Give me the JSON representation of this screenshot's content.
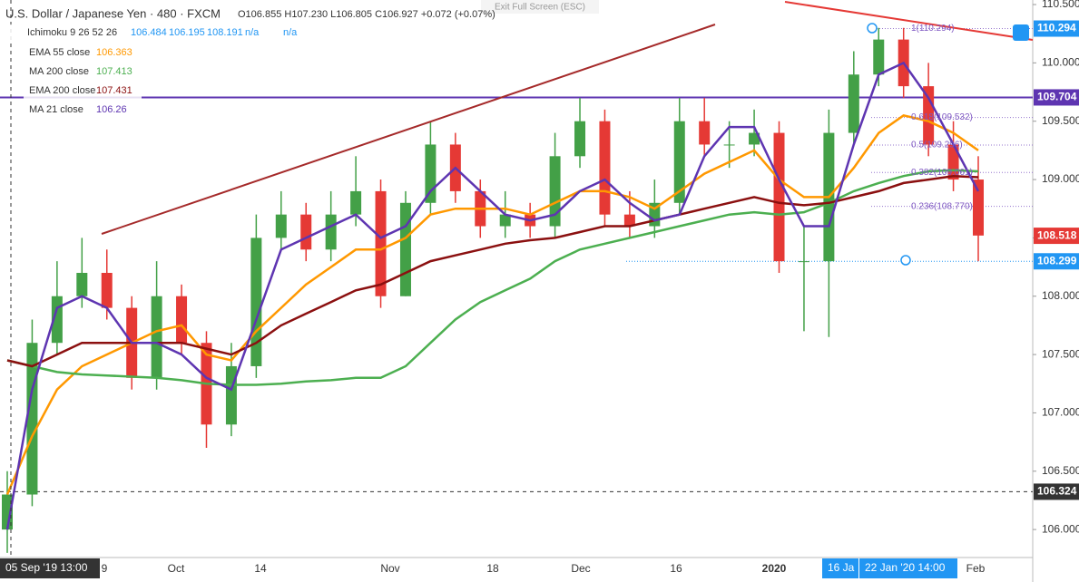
{
  "chart_data": {
    "type": "candlestick",
    "title": "U.S. Dollar / Japanese Yen · 480 · FXCM",
    "ohlc_text": "O106.855 H107.230 L106.805 C106.927 +0.072 (+0.07%)",
    "fullscreen_hint": "Exit Full Screen (ESC)",
    "up_color": "#43a047",
    "down_color": "#e53935",
    "open": [
      106.0,
      106.3,
      107.6,
      108.0,
      108.2,
      107.9,
      107.3,
      108.0,
      107.6,
      106.9,
      107.4,
      108.5,
      108.7,
      108.4,
      108.7,
      108.9,
      108.0,
      108.8,
      109.3,
      108.9,
      108.6,
      108.7,
      108.6,
      109.2,
      109.5,
      108.7,
      108.6,
      108.8,
      109.5,
      109.3,
      109.3,
      109.4,
      108.3,
      108.3,
      109.4,
      109.9,
      110.2,
      109.8,
      109.3,
      109.0
    ],
    "high": [
      106.5,
      107.8,
      108.3,
      108.5,
      108.4,
      108.0,
      108.3,
      108.1,
      107.7,
      107.6,
      108.7,
      108.9,
      108.8,
      108.9,
      109.2,
      109.0,
      108.9,
      109.5,
      109.4,
      109.0,
      108.9,
      108.8,
      109.4,
      109.7,
      109.6,
      108.9,
      109.0,
      109.7,
      109.7,
      109.5,
      109.6,
      109.5,
      108.6,
      109.6,
      110.1,
      110.3,
      110.3,
      110.0,
      109.5,
      109.2
    ],
    "low": [
      105.8,
      106.2,
      107.5,
      107.9,
      107.8,
      107.2,
      107.2,
      107.5,
      106.7,
      106.8,
      107.3,
      108.4,
      108.3,
      108.3,
      108.6,
      107.9,
      108.0,
      108.7,
      108.8,
      108.5,
      108.5,
      108.5,
      108.5,
      109.1,
      108.6,
      108.5,
      108.5,
      108.7,
      109.2,
      109.1,
      109.2,
      108.2,
      107.7,
      107.65,
      109.3,
      109.8,
      109.7,
      109.2,
      108.9,
      108.3
    ],
    "close": [
      106.3,
      107.6,
      108.0,
      108.2,
      107.9,
      107.3,
      108.0,
      107.6,
      106.9,
      107.4,
      108.5,
      108.7,
      108.4,
      108.7,
      108.9,
      108.0,
      108.8,
      109.3,
      108.9,
      108.6,
      108.7,
      108.6,
      109.2,
      109.5,
      108.7,
      108.6,
      108.8,
      109.5,
      109.3,
      109.3,
      109.4,
      108.3,
      108.3,
      109.4,
      109.9,
      110.2,
      109.8,
      109.3,
      109.0,
      108.52
    ],
    "ichimoku": {
      "name": "Ichimoku 9 26 52 26",
      "values": [
        106.484,
        106.195,
        108.191,
        "n/a",
        "n/a"
      ],
      "color": "#2196f3"
    },
    "series": [
      {
        "name": "EMA 55 close",
        "legend_value": 106.363,
        "color": "#ff9800",
        "values": [
          106.3,
          106.8,
          107.2,
          107.4,
          107.5,
          107.6,
          107.7,
          107.75,
          107.5,
          107.45,
          107.7,
          107.9,
          108.1,
          108.25,
          108.4,
          108.4,
          108.5,
          108.7,
          108.75,
          108.75,
          108.75,
          108.7,
          108.8,
          108.9,
          108.9,
          108.85,
          108.75,
          108.9,
          109.05,
          109.15,
          109.25,
          109.0,
          108.85,
          108.85,
          109.1,
          109.4,
          109.55,
          109.5,
          109.4,
          109.25
        ]
      },
      {
        "name": "MA 200 close",
        "legend_value": 107.413,
        "color": "#4caf50",
        "values": [
          107.45,
          107.4,
          107.35,
          107.33,
          107.32,
          107.31,
          107.3,
          107.28,
          107.25,
          107.24,
          107.24,
          107.25,
          107.27,
          107.28,
          107.3,
          107.3,
          107.4,
          107.6,
          107.8,
          107.95,
          108.05,
          108.15,
          108.3,
          108.4,
          108.45,
          108.5,
          108.55,
          108.6,
          108.65,
          108.7,
          108.72,
          108.7,
          108.72,
          108.8,
          108.9,
          108.97,
          109.03,
          109.07,
          109.08,
          109.07
        ]
      },
      {
        "name": "EMA 200 close",
        "legend_value": 107.431,
        "color": "#8b1010",
        "values": [
          107.45,
          107.4,
          107.5,
          107.6,
          107.6,
          107.6,
          107.6,
          107.6,
          107.55,
          107.5,
          107.6,
          107.75,
          107.85,
          107.95,
          108.05,
          108.1,
          108.2,
          108.3,
          108.35,
          108.4,
          108.45,
          108.48,
          108.5,
          108.55,
          108.6,
          108.6,
          108.65,
          108.7,
          108.75,
          108.8,
          108.85,
          108.8,
          108.78,
          108.8,
          108.85,
          108.9,
          108.97,
          109.0,
          109.03,
          109.02
        ]
      },
      {
        "name": "MA 21 close",
        "legend_value": 106.26,
        "color": "#5e35b1",
        "values": [
          106.0,
          107.2,
          107.9,
          108.0,
          107.9,
          107.6,
          107.6,
          107.5,
          107.3,
          107.2,
          107.8,
          108.4,
          108.5,
          108.6,
          108.7,
          108.5,
          108.6,
          108.9,
          109.1,
          108.9,
          108.7,
          108.65,
          108.7,
          108.9,
          109.0,
          108.8,
          108.65,
          108.7,
          109.2,
          109.45,
          109.45,
          109.0,
          108.6,
          108.6,
          109.3,
          109.9,
          110.0,
          109.7,
          109.3,
          108.9
        ]
      }
    ],
    "ylim": [
      105.76,
      110.539
    ],
    "yticks": [
      {
        "value": 110.5,
        "label": "110.500"
      },
      {
        "value": 110,
        "label": "110.000"
      },
      {
        "value": 109.5,
        "label": "109.500"
      },
      {
        "value": 109,
        "label": "109.000"
      },
      {
        "value": 108.5,
        "label": "108.500"
      },
      {
        "value": 108,
        "label": "108.000"
      },
      {
        "value": 107.5,
        "label": "107.500"
      },
      {
        "value": 107,
        "label": "107.000"
      },
      {
        "value": 106.5,
        "label": "106.500"
      },
      {
        "value": 106,
        "label": "106.000"
      }
    ],
    "x_axis_labels": [
      "9",
      "Oct",
      "14",
      "Nov",
      "18",
      "Dec",
      "16",
      "2020",
      "Feb"
    ],
    "x_highlight_labels": [
      "05 Sep '19  13:00",
      "16 Ja",
      "22 Jan '20  14:00"
    ],
    "fib_levels": [
      {
        "value": 110.294,
        "label": "1(110.294)"
      },
      {
        "value": 109.532,
        "label": "0.618(109.532)"
      },
      {
        "value": 109.296,
        "label": "0.5(109.296)"
      },
      {
        "value": 109.061,
        "label": "0.382(109.061)"
      },
      {
        "value": 108.77,
        "label": "0.236(108.770)"
      }
    ],
    "price_labels": [
      {
        "value": 110.294,
        "label": "110.294",
        "color": "#2196f3"
      },
      {
        "value": 109.704,
        "label": "109.704",
        "color": "#5e35b1"
      },
      {
        "value": 108.518,
        "label": "108.518",
        "color": "#e53935"
      },
      {
        "value": 108.299,
        "label": "108.299",
        "color": "#2196f3"
      },
      {
        "value": 106.324,
        "label": "106.324",
        "color": "#333333"
      }
    ]
  }
}
